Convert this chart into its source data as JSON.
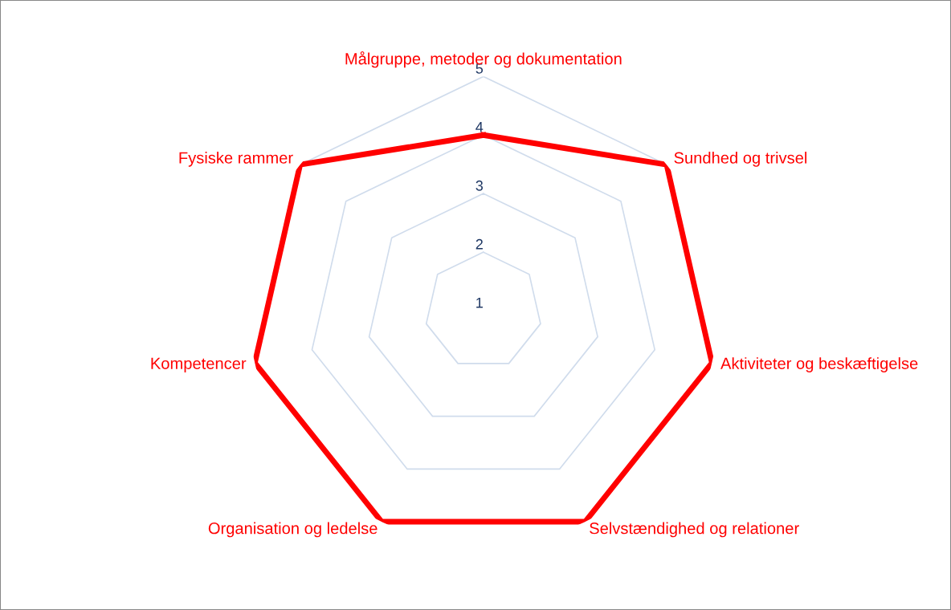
{
  "chart_data": {
    "type": "radar",
    "categories": [
      "Målgruppe, metoder og dokumentation",
      "Sundhed og trivsel",
      "Aktiviteter og beskæftigelse",
      "Selvstændighed og relationer",
      "Organisation og ledelse",
      "Kompetencer",
      "Fysiske rammer"
    ],
    "series": [
      {
        "color": "#ff0000",
        "values": [
          4,
          5,
          5,
          5,
          5,
          5,
          5
        ]
      }
    ],
    "ylim": [
      1,
      5
    ],
    "yticks": [
      1,
      2,
      3,
      4,
      5
    ],
    "grid": true,
    "marker": "none",
    "line_style": "solid"
  }
}
